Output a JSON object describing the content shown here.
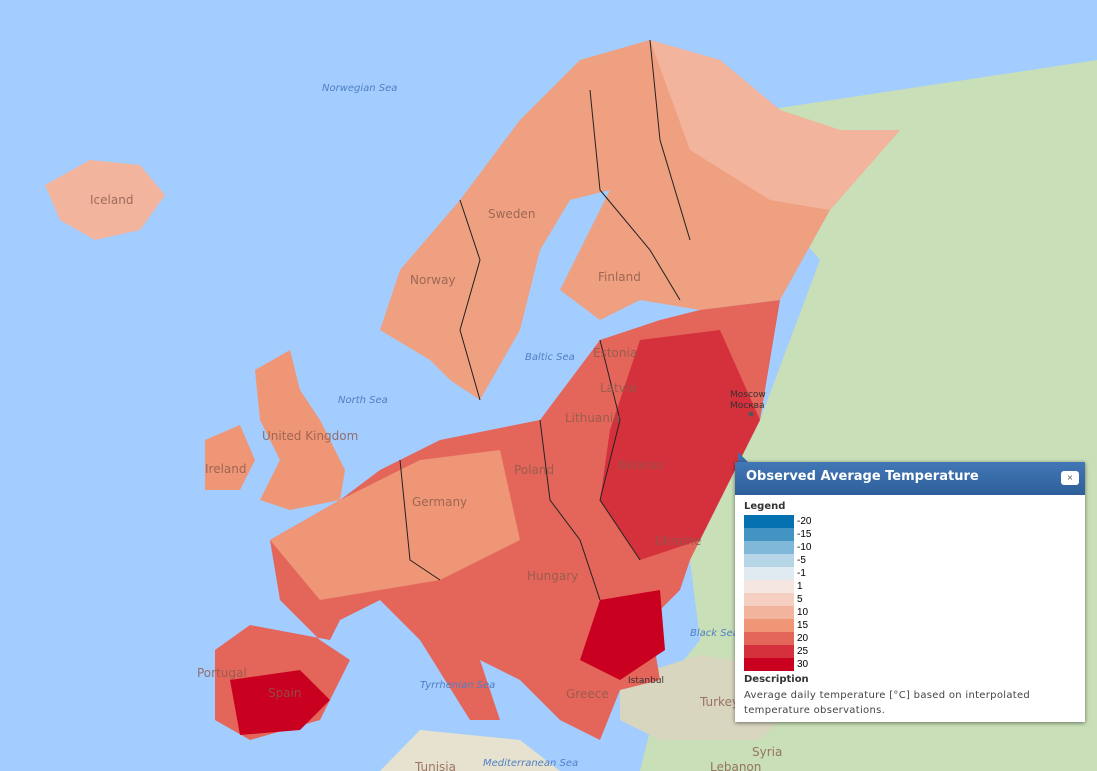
{
  "map": {
    "sea_labels": [
      "Norwegian Sea",
      "North Sea",
      "Baltic Sea",
      "Black Sea",
      "Tyrrhenian Sea",
      "Mediterranean Sea"
    ],
    "country_labels": [
      "Iceland",
      "Sweden",
      "Norway",
      "Finland",
      "Estonia",
      "Latvia",
      "Lithuania",
      "Belarus",
      "Poland",
      "Germany",
      "United Kingdom",
      "Ireland",
      "Ukraine",
      "Hungary",
      "Spain",
      "Portugal",
      "Greece",
      "Turkey",
      "Syria",
      "Tunisia",
      "Lebanon"
    ],
    "city_labels": [
      "Moscow",
      "Москва",
      "Istanbul"
    ]
  },
  "popup": {
    "title": "Observed Average Temperature",
    "close_label": "×",
    "legend_heading": "Legend",
    "legend": [
      {
        "value": "-20",
        "color": "#0571b0"
      },
      {
        "value": "-15",
        "color": "#4393c3"
      },
      {
        "value": "-10",
        "color": "#80b8d9"
      },
      {
        "value": "-5",
        "color": "#b6d6e8"
      },
      {
        "value": "-1",
        "color": "#e0ebf1"
      },
      {
        "value": "1",
        "color": "#f5e6e2"
      },
      {
        "value": "5",
        "color": "#f5cfc2"
      },
      {
        "value": "10",
        "color": "#f2b49c"
      },
      {
        "value": "15",
        "color": "#ef9677"
      },
      {
        "value": "20",
        "color": "#e4655a"
      },
      {
        "value": "25",
        "color": "#d5313d"
      },
      {
        "value": "30",
        "color": "#ca0020"
      }
    ],
    "description_heading": "Description",
    "description": "Average daily temperature [°C] based on interpolated temperature observations."
  }
}
